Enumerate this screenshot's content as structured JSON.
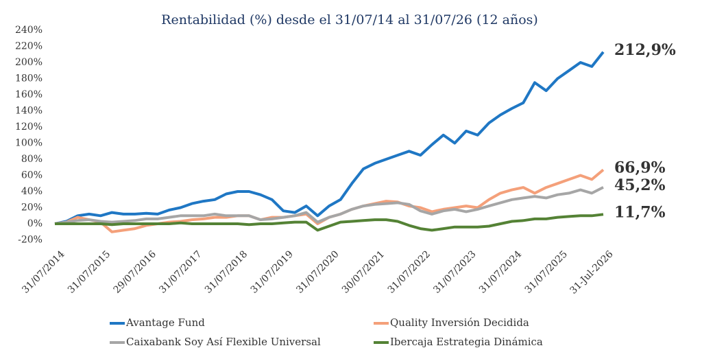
{
  "chart_data": {
    "type": "line",
    "title": "Rentabilidad (%) desde el 31/07/14 al 31/07/26 (12 años)",
    "categories": [
      "31/07/2014",
      null,
      null,
      null,
      "31/07/2015",
      null,
      null,
      null,
      "29/07/2016",
      null,
      null,
      null,
      "31/07/2017",
      null,
      null,
      null,
      "31/07/2018",
      null,
      null,
      null,
      "31/07/2019",
      null,
      null,
      null,
      "31/07/2020",
      null,
      null,
      null,
      "30/07/2021",
      null,
      null,
      null,
      "31/07/2022",
      null,
      null,
      null,
      "31/07/2023",
      null,
      null,
      null,
      "31/07/2024",
      null,
      null,
      null,
      "31/07/2025",
      null,
      null,
      null,
      "31-Jul-2026"
    ],
    "ylim": [
      -20,
      240
    ],
    "yticks": [
      {
        "value": -20,
        "label": "-20%"
      },
      {
        "value": 0,
        "label": "0%"
      },
      {
        "value": 20,
        "label": "20%"
      },
      {
        "value": 40,
        "label": "40%"
      },
      {
        "value": 60,
        "label": "60%"
      },
      {
        "value": 80,
        "label": "80%"
      },
      {
        "value": 100,
        "label": "100%"
      },
      {
        "value": 120,
        "label": "120%"
      },
      {
        "value": 140,
        "label": "140%"
      },
      {
        "value": 160,
        "label": "160%"
      },
      {
        "value": 180,
        "label": "180%"
      },
      {
        "value": 200,
        "label": "200%"
      },
      {
        "value": 220,
        "label": "220%"
      },
      {
        "value": 240,
        "label": "240%"
      }
    ],
    "grid": false,
    "legend": "bottom",
    "series": [
      {
        "name": "Avantage Fund",
        "color": "#1f77c4",
        "label_color": "#2e4a8a",
        "values": [
          0,
          3,
          10,
          12,
          10,
          14,
          12,
          12,
          13,
          12,
          17,
          20,
          25,
          28,
          30,
          37,
          40,
          40,
          36,
          30,
          16,
          14,
          22,
          10,
          22,
          30,
          50,
          68,
          75,
          80,
          85,
          90,
          85,
          98,
          110,
          100,
          115,
          110,
          125,
          135,
          143,
          150,
          175,
          165,
          180,
          190,
          200,
          195,
          212.9
        ],
        "value_labels": [
          null,
          null,
          null,
          null,
          null,
          null,
          null,
          null,
          null,
          null,
          null,
          null,
          null,
          null,
          null,
          null,
          null,
          null,
          null,
          null,
          null,
          null,
          null,
          null,
          null,
          null,
          null,
          null,
          null,
          null,
          null,
          null,
          null,
          null,
          null,
          null,
          null,
          null,
          null,
          null,
          null,
          null,
          null,
          null,
          null,
          null,
          null,
          null,
          "212,9%"
        ]
      },
      {
        "name": "Quality Inversión Decidida",
        "color": "#f4a07a",
        "label_color": "#c55a11",
        "values": [
          0,
          2,
          8,
          5,
          2,
          -10,
          -8,
          -6,
          -2,
          0,
          2,
          3,
          5,
          6,
          8,
          8,
          10,
          10,
          5,
          8,
          8,
          10,
          12,
          0,
          8,
          12,
          18,
          22,
          25,
          28,
          27,
          22,
          20,
          15,
          18,
          20,
          22,
          20,
          30,
          38,
          42,
          45,
          38,
          45,
          50,
          55,
          60,
          55,
          66.9
        ],
        "value_labels": [
          null,
          null,
          null,
          null,
          null,
          null,
          null,
          null,
          null,
          null,
          null,
          null,
          null,
          null,
          null,
          null,
          null,
          null,
          null,
          null,
          null,
          null,
          null,
          null,
          null,
          null,
          null,
          null,
          null,
          null,
          null,
          null,
          null,
          null,
          null,
          null,
          null,
          null,
          null,
          null,
          null,
          null,
          null,
          null,
          null,
          null,
          null,
          null,
          "66,9%"
        ]
      },
      {
        "name": "Caixabank Soy Así Flexible Universal",
        "color": "#a6a6a6",
        "label_color": "#a0a0a0",
        "values": [
          0,
          2,
          4,
          5,
          3,
          2,
          3,
          4,
          6,
          6,
          8,
          10,
          10,
          10,
          12,
          10,
          10,
          10,
          5,
          6,
          8,
          10,
          14,
          2,
          8,
          12,
          18,
          22,
          24,
          25,
          26,
          24,
          16,
          12,
          16,
          18,
          15,
          18,
          22,
          26,
          30,
          32,
          34,
          32,
          36,
          38,
          42,
          38,
          45.2
        ],
        "value_labels": [
          null,
          null,
          null,
          null,
          null,
          null,
          null,
          null,
          null,
          null,
          null,
          null,
          null,
          null,
          null,
          null,
          null,
          null,
          null,
          null,
          null,
          null,
          null,
          null,
          null,
          null,
          null,
          null,
          null,
          null,
          null,
          null,
          null,
          null,
          null,
          null,
          null,
          null,
          null,
          null,
          null,
          null,
          null,
          null,
          null,
          null,
          null,
          null,
          "45,2%"
        ]
      },
      {
        "name": "Ibercaja Estrategia Dinámica",
        "color": "#548235",
        "label_color": "#548235",
        "values": [
          0,
          0,
          0,
          0,
          0,
          -1,
          0,
          0,
          0,
          0,
          0,
          1,
          0,
          0,
          0,
          0,
          0,
          -1,
          0,
          0,
          1,
          2,
          2,
          -8,
          -3,
          2,
          3,
          4,
          5,
          5,
          3,
          -2,
          -6,
          -8,
          -6,
          -4,
          -4,
          -4,
          -3,
          0,
          3,
          4,
          6,
          6,
          8,
          9,
          10,
          10,
          11.7
        ],
        "value_labels": [
          null,
          null,
          null,
          null,
          null,
          null,
          null,
          null,
          null,
          null,
          null,
          null,
          null,
          null,
          null,
          null,
          null,
          null,
          null,
          null,
          null,
          null,
          null,
          null,
          null,
          null,
          null,
          null,
          null,
          null,
          null,
          null,
          null,
          null,
          null,
          null,
          null,
          null,
          null,
          null,
          null,
          null,
          null,
          null,
          null,
          null,
          null,
          null,
          "11,7%"
        ]
      }
    ]
  }
}
